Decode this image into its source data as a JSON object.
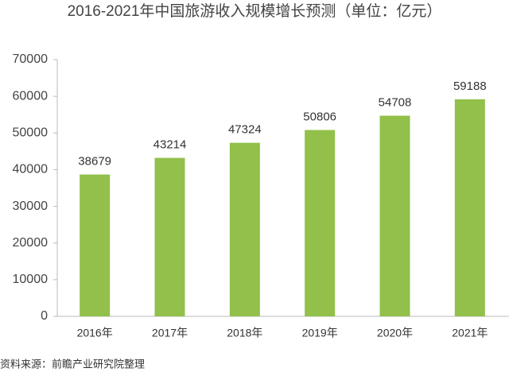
{
  "chart_data": {
    "type": "bar",
    "title": "2016-2021年中国旅游收入规模增长预测（单位：亿元）",
    "categories": [
      "2016年",
      "2017年",
      "2018年",
      "2019年",
      "2020年",
      "2021年"
    ],
    "values": [
      38679,
      43214,
      47324,
      50806,
      54708,
      59188
    ],
    "color": "#92c04a",
    "ylim": [
      0,
      70000
    ],
    "yticks": [
      0,
      10000,
      20000,
      30000,
      40000,
      50000,
      60000,
      70000
    ],
    "grid": false,
    "source": "资料来源：前瞻产业研究院整理"
  }
}
